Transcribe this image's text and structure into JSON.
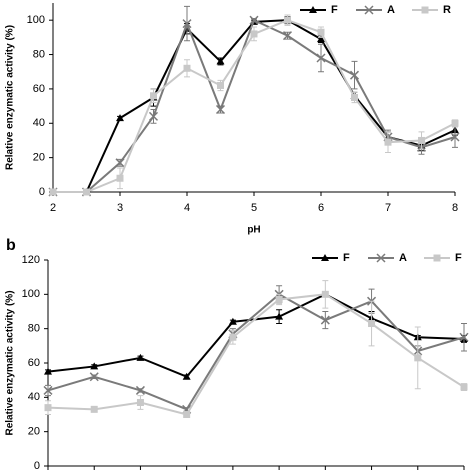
{
  "chart_data": [
    {
      "type": "line",
      "x_label": "pH",
      "y_label": "Relative enzymatic activity (%)",
      "x": [
        2,
        2.5,
        3,
        3.5,
        4,
        4.5,
        5,
        5.5,
        6,
        6.5,
        7,
        7.5,
        8
      ],
      "xlim": [
        2,
        8
      ],
      "xticks": [
        2,
        3,
        4,
        5,
        6,
        7,
        8
      ],
      "ylim": [
        0,
        110
      ],
      "yticks": [
        0,
        20,
        40,
        60,
        80,
        100
      ],
      "series": [
        {
          "name": "F",
          "color": "#000000",
          "values": [
            0,
            0,
            43,
            55,
            95,
            76,
            99,
            100,
            89,
            56,
            32,
            27,
            36
          ],
          "errors": [
            0,
            0,
            1,
            5,
            3,
            2,
            1,
            2,
            2,
            2,
            3,
            3,
            3
          ]
        },
        {
          "name": "A",
          "color": "#7a7a7a",
          "values": [
            0,
            0,
            17,
            44,
            98,
            48,
            100,
            91,
            78,
            68,
            32,
            26,
            32
          ],
          "errors": [
            0,
            0,
            2,
            4,
            10,
            2,
            1,
            2,
            8,
            8,
            4,
            4,
            6
          ]
        },
        {
          "name": "R",
          "color": "#c8c8c8",
          "values": [
            0,
            0,
            8,
            56,
            72,
            62,
            92,
            100,
            93,
            55,
            29,
            30,
            40
          ],
          "errors": [
            0,
            0,
            6,
            4,
            5,
            3,
            4,
            3,
            3,
            3,
            6,
            5,
            2
          ]
        }
      ]
    },
    {
      "type": "line",
      "panel": "b",
      "y_label": "Relative enzymatic activity (%)",
      "categories": [
        null,
        null,
        null,
        null,
        null,
        null,
        null,
        null,
        null,
        null
      ],
      "ylim": [
        0,
        120
      ],
      "yticks": [
        0,
        20,
        40,
        60,
        80,
        100,
        120
      ],
      "series": [
        {
          "name": "F",
          "color": "#000000",
          "values": [
            55,
            58,
            63,
            52,
            84,
            87,
            100,
            86,
            75,
            74
          ],
          "errors": [
            1,
            1,
            1,
            1,
            1,
            4,
            1,
            4,
            1,
            2
          ]
        },
        {
          "name": "A",
          "color": "#7a7a7a",
          "values": [
            44,
            52,
            44,
            33,
            77,
            100,
            85,
            96,
            67,
            75
          ],
          "errors": [
            3,
            1,
            1,
            1,
            3,
            5,
            5,
            7,
            3,
            8
          ]
        },
        {
          "name": "F",
          "color": "#c8c8c8",
          "values": [
            34,
            33,
            37,
            30,
            75,
            97,
            100,
            83,
            63,
            46
          ],
          "errors": [
            4,
            1,
            4,
            1,
            4,
            3,
            8,
            13,
            18,
            2
          ]
        }
      ]
    }
  ]
}
